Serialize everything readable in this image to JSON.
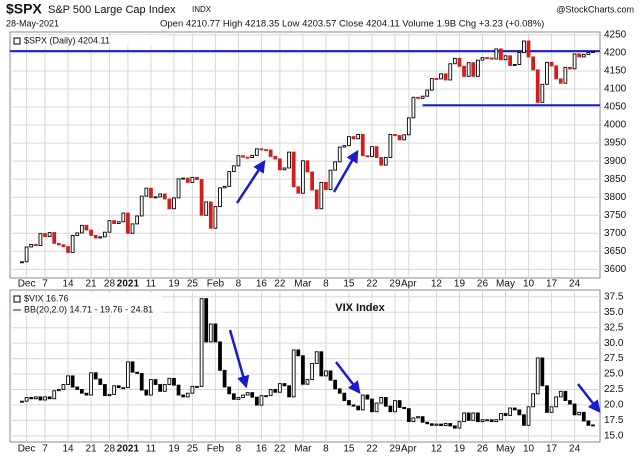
{
  "header": {
    "symbol": "$SPX",
    "name": "S&P 500 Large Cap Index",
    "exchange": "INDX",
    "date": "28-May-2021",
    "quote": "Open 4210.77 High 4218.35 Low 4203.57 Close 4204.11 Volume 1.9B Chg +3.23 (+0.08%)",
    "source": "@StockCharts.com"
  },
  "chart_data": [
    {
      "type": "candlestick",
      "up_color": "#000000",
      "down_color": "#d41c1c",
      "grid": true,
      "ylim": [
        3576,
        4258
      ],
      "yticks": [
        3600,
        3650,
        3700,
        3750,
        3800,
        3850,
        3900,
        3950,
        4000,
        4050,
        4100,
        4150,
        4200,
        4250
      ],
      "hlines": [
        {
          "value": 4205,
          "color": "#1a1ad0"
        },
        {
          "value": 4055,
          "color": "#1a1ad0"
        }
      ],
      "categories": [
        null,
        "Dec",
        null,
        null,
        null,
        "7",
        null,
        null,
        null,
        null,
        "14",
        null,
        null,
        null,
        null,
        "21",
        null,
        null,
        null,
        "28",
        null,
        null,
        null,
        "2021",
        null,
        null,
        null,
        null,
        "11",
        null,
        null,
        null,
        null,
        "19",
        null,
        null,
        null,
        "25",
        null,
        null,
        null,
        null,
        "Feb",
        null,
        null,
        null,
        null,
        "8",
        null,
        null,
        null,
        null,
        "16",
        null,
        null,
        null,
        "22",
        null,
        null,
        null,
        null,
        "Mar",
        null,
        null,
        null,
        null,
        "8",
        null,
        null,
        null,
        null,
        "15",
        null,
        null,
        null,
        null,
        "22",
        null,
        null,
        null,
        null,
        "29",
        null,
        null,
        "Apr",
        null,
        null,
        null,
        null,
        null,
        "12",
        null,
        null,
        null,
        null,
        "19",
        null,
        null,
        null,
        null,
        "26",
        null,
        null,
        null,
        null,
        "May",
        null,
        null,
        null,
        null,
        "10",
        null,
        null,
        null,
        null,
        "17",
        null,
        null,
        null,
        null,
        "24",
        null,
        null,
        null,
        null
      ],
      "series": [
        {
          "name": "$SPX (Daily) 4204.11",
          "values": [
            3621,
            3662,
            3669,
            3666,
            3699,
            3691,
            3702,
            3672,
            3668,
            3663,
            3647,
            3694,
            3701,
            3722,
            3709,
            3694,
            3687,
            3690,
            3703,
            3735,
            3727,
            3732,
            3756,
            3700,
            3726,
            3748,
            3803,
            3825,
            3799,
            3801,
            3809,
            3795,
            3768,
            3798,
            3851,
            3853,
            3841,
            3855,
            3849,
            3750,
            3787,
            3714,
            3774,
            3826,
            3830,
            3871,
            3887,
            3915,
            3911,
            3910,
            3916,
            3934,
            3932,
            3931,
            3913,
            3906,
            3876,
            3881,
            3925,
            3829,
            3811,
            3901,
            3870,
            3820,
            3768,
            3841,
            3821,
            3875,
            3898,
            3939,
            3943,
            3968,
            3962,
            3974,
            3915,
            3913,
            3940,
            3910,
            3889,
            3910,
            3974,
            3971,
            3959,
            3973,
            4020,
            4077,
            4074,
            4080,
            4097,
            4129,
            4128,
            4142,
            4125,
            4170,
            4185,
            4163,
            4135,
            4173,
            4135,
            4180,
            4187,
            4186,
            4183,
            4211,
            4181,
            4192,
            4165,
            4168,
            4201,
            4233,
            4189,
            4153,
            4063,
            4113,
            4174,
            4164,
            4128,
            4116,
            4160,
            4156,
            4197,
            4189,
            4196,
            4201,
            4204.11
          ]
        }
      ]
    },
    {
      "type": "candlestick",
      "up_color": "#000000",
      "down_color": "#000000",
      "grid": true,
      "title": "VIX Index",
      "indicator": "BB(20,2.0) 14.71 - 19.76 - 24.81",
      "ylim": [
        14,
        38.6
      ],
      "yticks": [
        {
          "value": 15,
          "label": "15.0"
        },
        {
          "value": 17.5,
          "label": "17.5"
        },
        {
          "value": 20,
          "label": "20.0"
        },
        {
          "value": 22.5,
          "label": "22.5"
        },
        {
          "value": 25,
          "label": "25.0"
        },
        {
          "value": 27.5,
          "label": "27.5"
        },
        {
          "value": 30,
          "label": "30.0"
        },
        {
          "value": 32.5,
          "label": "32.5"
        },
        {
          "value": 35,
          "label": "35.0"
        },
        {
          "value": 37.5,
          "label": "37.5"
        }
      ],
      "categories": [
        null,
        "Dec",
        null,
        null,
        null,
        "7",
        null,
        null,
        null,
        null,
        "14",
        null,
        null,
        null,
        null,
        "21",
        null,
        null,
        null,
        "28",
        null,
        null,
        null,
        "2021",
        null,
        null,
        null,
        null,
        "11",
        null,
        null,
        null,
        null,
        "19",
        null,
        null,
        null,
        "25",
        null,
        null,
        null,
        null,
        "Feb",
        null,
        null,
        null,
        null,
        "8",
        null,
        null,
        null,
        null,
        "16",
        null,
        null,
        null,
        "22",
        null,
        null,
        null,
        null,
        "Mar",
        null,
        null,
        null,
        null,
        "8",
        null,
        null,
        null,
        null,
        "15",
        null,
        null,
        null,
        null,
        "22",
        null,
        null,
        null,
        null,
        "29",
        null,
        null,
        "Apr",
        null,
        null,
        null,
        null,
        null,
        "12",
        null,
        null,
        null,
        null,
        "19",
        null,
        null,
        null,
        null,
        "26",
        null,
        null,
        null,
        null,
        "May",
        null,
        null,
        null,
        null,
        "10",
        null,
        null,
        null,
        null,
        "17",
        null,
        null,
        null,
        null,
        "24",
        null,
        null,
        null,
        null
      ],
      "series": [
        {
          "name": "$VIX 16.76",
          "values": [
            20.6,
            21.2,
            21.0,
            21.3,
            20.8,
            21.3,
            21.0,
            22.3,
            22.5,
            23.3,
            24.7,
            22.9,
            22.5,
            21.9,
            21.6,
            25.2,
            24.2,
            23.3,
            21.5,
            21.7,
            23.1,
            22.8,
            22.8,
            26.97,
            25.3,
            25.1,
            22.4,
            21.6,
            24.1,
            23.3,
            22.2,
            23.3,
            24.3,
            23.2,
            21.6,
            21.3,
            21.9,
            23.0,
            23.0,
            37.2,
            30.2,
            33.1,
            30.2,
            25.6,
            22.9,
            21.8,
            20.9,
            21.2,
            21.6,
            21.99,
            21.25,
            19.97,
            21.5,
            21.5,
            22.5,
            22.05,
            23.45,
            23.1,
            21.3,
            28.9,
            27.95,
            23.35,
            24.1,
            26.7,
            28.6,
            24.7,
            25.5,
            24.0,
            22.6,
            21.9,
            20.7,
            20.0,
            19.8,
            19.2,
            21.6,
            20.95,
            18.9,
            20.3,
            21.2,
            19.8,
            18.9,
            20.7,
            19.6,
            19.4,
            17.3,
            17.9,
            18.1,
            17.2,
            16.95,
            16.7,
            16.9,
            16.65,
            16.99,
            16.6,
            16.25,
            17.3,
            18.7,
            17.5,
            18.7,
            17.3,
            17.6,
            17.6,
            17.3,
            17.6,
            18.6,
            18.3,
            19.5,
            19.2,
            18.4,
            16.7,
            19.7,
            21.8,
            27.6,
            23.1,
            18.8,
            19.7,
            21.3,
            22.2,
            20.7,
            20.15,
            18.4,
            18.8,
            17.4,
            16.7,
            16.76
          ]
        }
      ]
    }
  ]
}
